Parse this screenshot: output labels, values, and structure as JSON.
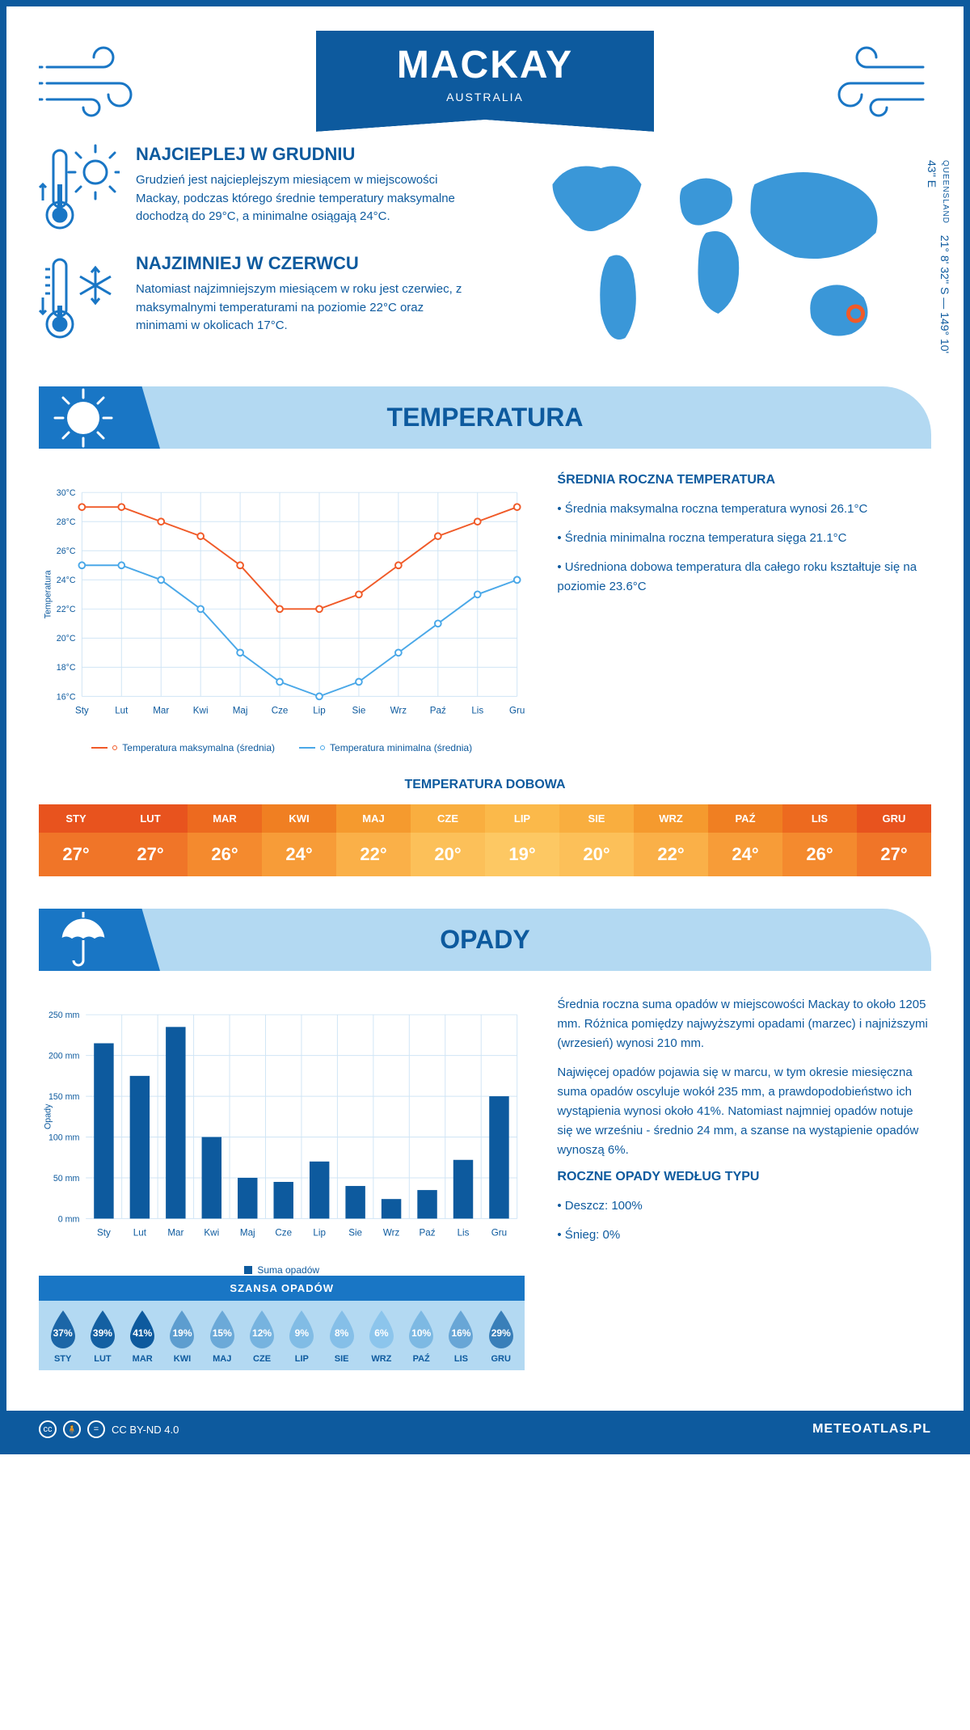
{
  "header": {
    "city": "MACKAY",
    "country": "AUSTRALIA",
    "region": "QUEENSLAND",
    "coords": "21° 8' 32'' S — 149° 10' 43'' E"
  },
  "intro": {
    "warm": {
      "title": "NAJCIEPLEJ W GRUDNIU",
      "text": "Grudzień jest najcieplejszym miesiącem w miejscowości Mackay, podczas którego średnie temperatury maksymalne dochodzą do 29°C, a minimalne osiągają 24°C."
    },
    "cold": {
      "title": "NAJZIMNIEJ W CZERWCU",
      "text": "Natomiast najzimniejszym miesiącem w roku jest czerwiec, z maksymalnymi temperaturami na poziomie 22°C oraz minimami w okolicach 17°C."
    }
  },
  "months": [
    "Sty",
    "Lut",
    "Mar",
    "Kwi",
    "Maj",
    "Cze",
    "Lip",
    "Sie",
    "Wrz",
    "Paź",
    "Lis",
    "Gru"
  ],
  "months_upper": [
    "STY",
    "LUT",
    "MAR",
    "KWI",
    "MAJ",
    "CZE",
    "LIP",
    "SIE",
    "WRZ",
    "PAŹ",
    "LIS",
    "GRU"
  ],
  "temperature": {
    "banner": "TEMPERATURA",
    "chart": {
      "type": "line",
      "ylabel": "Temperatura",
      "ylim": [
        16,
        30
      ],
      "ytick_step": 2,
      "ytick_suffix": "°C",
      "grid_color": "#d0e5f5",
      "background": "#ffffff",
      "series": [
        {
          "name": "Temperatura maksymalna (średnia)",
          "color": "#f05a28",
          "values": [
            29,
            29,
            28,
            27,
            25,
            22,
            22,
            23,
            25,
            27,
            28,
            29
          ]
        },
        {
          "name": "Temperatura minimalna (średnia)",
          "color": "#4aa8e8",
          "values": [
            25,
            25,
            24,
            22,
            19,
            17,
            16,
            17,
            19,
            21,
            23,
            24
          ]
        }
      ],
      "line_width": 2,
      "marker": "circle",
      "marker_size": 4
    },
    "annual": {
      "title": "ŚREDNIA ROCZNA TEMPERATURA",
      "items": [
        "• Średnia maksymalna roczna temperatura wynosi 26.1°C",
        "• Średnia minimalna roczna temperatura sięga 21.1°C",
        "• Uśredniona dobowa temperatura dla całego roku kształtuje się na poziomie 23.6°C"
      ]
    },
    "daily": {
      "title": "TEMPERATURA DOBOWA",
      "values": [
        27,
        27,
        26,
        24,
        22,
        20,
        19,
        20,
        22,
        24,
        26,
        27
      ],
      "suffix": "°",
      "colors_top": [
        "#e8531e",
        "#e8531e",
        "#ed6a1f",
        "#f07f22",
        "#f59a2e",
        "#f9ae3f",
        "#fbb94a",
        "#f9ae3f",
        "#f59a2e",
        "#f07f22",
        "#ed6a1f",
        "#e8531e"
      ],
      "colors_bot": [
        "#f07528",
        "#f07528",
        "#f48a2e",
        "#f79c38",
        "#fab048",
        "#fcc059",
        "#fdc863",
        "#fcc059",
        "#fab048",
        "#f79c38",
        "#f48a2e",
        "#f07528"
      ]
    }
  },
  "precip": {
    "banner": "OPADY",
    "chart": {
      "type": "bar",
      "ylabel": "Opady",
      "ylim": [
        0,
        250
      ],
      "ytick_step": 50,
      "ytick_suffix": " mm",
      "bar_color": "#0d5a9e",
      "grid_color": "#d0e5f5",
      "legend": "Suma opadów",
      "values": [
        215,
        175,
        235,
        100,
        50,
        45,
        70,
        40,
        24,
        35,
        72,
        150
      ]
    },
    "text1": "Średnia roczna suma opadów w miejscowości Mackay to około 1205 mm. Różnica pomiędzy najwyższymi opadami (marzec) i najniższymi (wrzesień) wynosi 210 mm.",
    "text2": "Najwięcej opadów pojawia się w marcu, w tym okresie miesięczna suma opadów oscyluje wokół 235 mm, a prawdopodobieństwo ich wystąpienia wynosi około 41%. Natomiast najmniej opadów notuje się we wrześniu - średnio 24 mm, a szanse na wystąpienie opadów wynoszą 6%.",
    "chance": {
      "title": "SZANSA OPADÓW",
      "values": [
        37,
        39,
        41,
        19,
        15,
        12,
        9,
        8,
        6,
        10,
        16,
        29
      ],
      "suffix": "%",
      "drop_color_min": "#8cc5ec",
      "drop_color_max": "#0d5a9e"
    },
    "bytype": {
      "title": "ROCZNE OPADY WEDŁUG TYPU",
      "items": [
        "• Deszcz: 100%",
        "• Śnieg: 0%"
      ]
    }
  },
  "footer": {
    "license": "CC BY-ND 4.0",
    "logo": "METEOATLAS.PL"
  }
}
